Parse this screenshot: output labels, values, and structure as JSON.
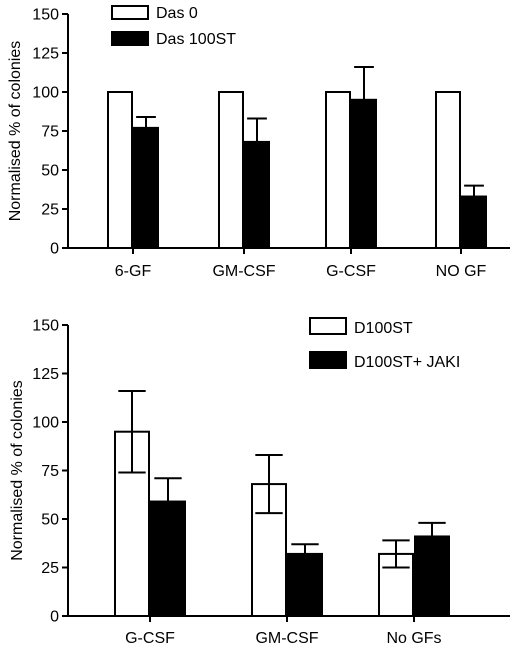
{
  "chart_data": [
    {
      "type": "bar",
      "ylabel": "Normalised % of colonies",
      "ylim": [
        0,
        150
      ],
      "yticks": [
        0,
        25,
        50,
        75,
        100,
        125,
        150
      ],
      "categories": [
        "6-GF",
        "GM-CSF",
        "G-CSF",
        "NO GF"
      ],
      "legend_position": "top-left",
      "series": [
        {
          "name": "Das 0",
          "fill": "#ffffff",
          "values": [
            100,
            100,
            100,
            100
          ],
          "errors": [
            0,
            0,
            0,
            0
          ]
        },
        {
          "name": "Das 100ST",
          "fill": "#000000",
          "values": [
            77,
            68,
            95,
            33
          ],
          "errors": [
            7,
            15,
            21,
            7
          ]
        }
      ]
    },
    {
      "type": "bar",
      "ylabel": "Normalised % of colonies",
      "ylim": [
        0,
        150
      ],
      "yticks": [
        0,
        25,
        50,
        75,
        100,
        125,
        150
      ],
      "categories": [
        "G-CSF",
        "GM-CSF",
        "No GFs"
      ],
      "legend_position": "top-right",
      "series": [
        {
          "name": "D100ST",
          "fill": "#ffffff",
          "values": [
            95,
            68,
            32
          ],
          "errors": [
            21,
            15,
            7
          ]
        },
        {
          "name": "D100ST+ JAKI",
          "fill": "#000000",
          "values": [
            59,
            32,
            41
          ],
          "errors": [
            12,
            5,
            7
          ]
        }
      ]
    }
  ]
}
